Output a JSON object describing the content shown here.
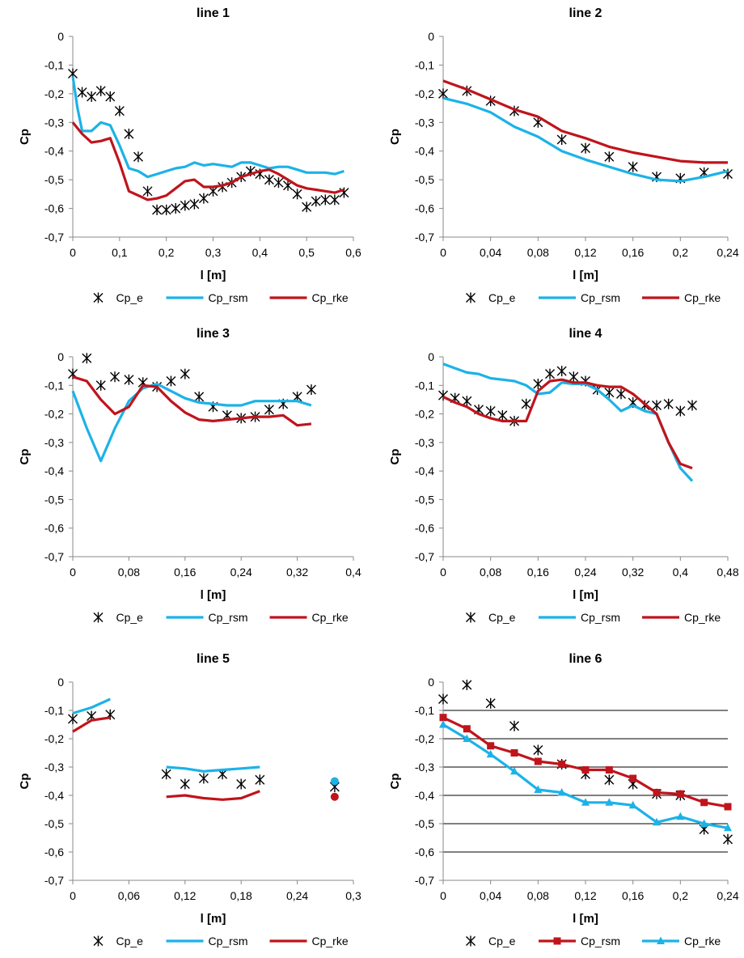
{
  "chart_data": [
    {
      "type": "line",
      "title": "line 1",
      "xlabel": "l [m]",
      "ylabel": "Cp",
      "xlim": [
        0,
        0.6
      ],
      "ylim": [
        -0.7,
        0
      ],
      "xticks": [
        "0",
        "0,1",
        "0,2",
        "0,3",
        "0,4",
        "0,5",
        "0,6"
      ],
      "yticks": [
        "0",
        "-0,1",
        "-0,2",
        "-0,3",
        "-0,4",
        "-0,5",
        "-0,6",
        "-0,7"
      ],
      "grid": false,
      "legend": "bottom",
      "series": [
        {
          "name": "Cp_e",
          "style": "marker",
          "marker": "star",
          "color": "#000000",
          "x": [
            0,
            0.02,
            0.04,
            0.06,
            0.08,
            0.1,
            0.12,
            0.14,
            0.16,
            0.18,
            0.2,
            0.22,
            0.24,
            0.26,
            0.28,
            0.3,
            0.32,
            0.34,
            0.36,
            0.38,
            0.4,
            0.42,
            0.44,
            0.46,
            0.48,
            0.5,
            0.52,
            0.54,
            0.56,
            0.58
          ],
          "y": [
            -0.13,
            -0.195,
            -0.21,
            -0.19,
            -0.21,
            -0.26,
            -0.34,
            -0.42,
            -0.54,
            -0.605,
            -0.605,
            -0.6,
            -0.59,
            -0.585,
            -0.565,
            -0.54,
            -0.525,
            -0.51,
            -0.49,
            -0.47,
            -0.48,
            -0.5,
            -0.51,
            -0.52,
            -0.55,
            -0.595,
            -0.575,
            -0.57,
            -0.57,
            -0.545
          ]
        },
        {
          "name": "Cp_rsm",
          "style": "line",
          "color": "#1cb2e8",
          "x": [
            0,
            0.01,
            0.02,
            0.04,
            0.06,
            0.08,
            0.1,
            0.12,
            0.14,
            0.16,
            0.18,
            0.2,
            0.22,
            0.24,
            0.26,
            0.28,
            0.3,
            0.32,
            0.34,
            0.36,
            0.38,
            0.4,
            0.42,
            0.44,
            0.46,
            0.48,
            0.5,
            0.52,
            0.54,
            0.56,
            0.58
          ],
          "y": [
            -0.14,
            -0.25,
            -0.33,
            -0.33,
            -0.3,
            -0.31,
            -0.38,
            -0.46,
            -0.47,
            -0.49,
            -0.48,
            -0.47,
            -0.46,
            -0.455,
            -0.44,
            -0.45,
            -0.445,
            -0.45,
            -0.455,
            -0.44,
            -0.44,
            -0.45,
            -0.46,
            -0.455,
            -0.455,
            -0.465,
            -0.475,
            -0.475,
            -0.475,
            -0.48,
            -0.47
          ]
        },
        {
          "name": "Cp_rke",
          "style": "line",
          "color": "#c0141c",
          "x": [
            0,
            0.02,
            0.04,
            0.06,
            0.08,
            0.1,
            0.12,
            0.14,
            0.16,
            0.18,
            0.2,
            0.22,
            0.24,
            0.26,
            0.28,
            0.3,
            0.32,
            0.34,
            0.36,
            0.38,
            0.4,
            0.42,
            0.44,
            0.46,
            0.48,
            0.5,
            0.52,
            0.54,
            0.56,
            0.58
          ],
          "y": [
            -0.3,
            -0.34,
            -0.37,
            -0.365,
            -0.355,
            -0.44,
            -0.54,
            -0.555,
            -0.57,
            -0.565,
            -0.555,
            -0.53,
            -0.505,
            -0.5,
            -0.525,
            -0.525,
            -0.52,
            -0.51,
            -0.49,
            -0.48,
            -0.47,
            -0.465,
            -0.48,
            -0.5,
            -0.52,
            -0.53,
            -0.535,
            -0.54,
            -0.545,
            -0.535
          ]
        }
      ]
    },
    {
      "type": "line",
      "title": "line 2",
      "xlabel": "l [m]",
      "ylabel": "Cp",
      "xlim": [
        0,
        0.24
      ],
      "ylim": [
        -0.7,
        0
      ],
      "xticks": [
        "0",
        "0,04",
        "0,08",
        "0,12",
        "0,16",
        "0,2",
        "0,24"
      ],
      "yticks": [
        "0",
        "-0,1",
        "-0,2",
        "-0,3",
        "-0,4",
        "-0,5",
        "-0,6",
        "-0,7"
      ],
      "grid": false,
      "legend": "bottom",
      "series": [
        {
          "name": "Cp_e",
          "style": "marker",
          "marker": "star",
          "color": "#000000",
          "x": [
            0,
            0.02,
            0.04,
            0.06,
            0.08,
            0.1,
            0.12,
            0.14,
            0.16,
            0.18,
            0.2,
            0.22,
            0.24
          ],
          "y": [
            -0.2,
            -0.19,
            -0.225,
            -0.26,
            -0.3,
            -0.36,
            -0.39,
            -0.42,
            -0.455,
            -0.49,
            -0.495,
            -0.475,
            -0.48
          ]
        },
        {
          "name": "Cp_rsm",
          "style": "line",
          "color": "#1cb2e8",
          "x": [
            0,
            0.02,
            0.04,
            0.06,
            0.08,
            0.1,
            0.12,
            0.14,
            0.16,
            0.18,
            0.2,
            0.22,
            0.24
          ],
          "y": [
            -0.215,
            -0.235,
            -0.265,
            -0.315,
            -0.35,
            -0.4,
            -0.43,
            -0.455,
            -0.48,
            -0.5,
            -0.505,
            -0.49,
            -0.47
          ]
        },
        {
          "name": "Cp_rke",
          "style": "line",
          "color": "#c0141c",
          "x": [
            0,
            0.02,
            0.04,
            0.06,
            0.08,
            0.1,
            0.12,
            0.14,
            0.16,
            0.18,
            0.2,
            0.22,
            0.24
          ],
          "y": [
            -0.155,
            -0.185,
            -0.22,
            -0.255,
            -0.28,
            -0.33,
            -0.355,
            -0.385,
            -0.405,
            -0.42,
            -0.435,
            -0.44,
            -0.44
          ]
        }
      ]
    },
    {
      "type": "line",
      "title": "line 3",
      "xlabel": "l [m]",
      "ylabel": "Cp",
      "xlim": [
        0,
        0.4
      ],
      "ylim": [
        -0.7,
        0
      ],
      "xticks": [
        "0",
        "0,08",
        "0,16",
        "0,24",
        "0,32",
        "0,4"
      ],
      "yticks": [
        "0",
        "-0,1",
        "-0,2",
        "-0,3",
        "-0,4",
        "-0,5",
        "-0,6",
        "-0,7"
      ],
      "grid": false,
      "legend": "bottom",
      "series": [
        {
          "name": "Cp_e",
          "style": "marker",
          "marker": "star",
          "color": "#000000",
          "x": [
            0,
            0.02,
            0.04,
            0.06,
            0.08,
            0.1,
            0.12,
            0.14,
            0.16,
            0.18,
            0.2,
            0.22,
            0.24,
            0.26,
            0.28,
            0.3,
            0.32,
            0.34
          ],
          "y": [
            -0.06,
            -0.005,
            -0.1,
            -0.07,
            -0.08,
            -0.09,
            -0.105,
            -0.085,
            -0.06,
            -0.14,
            -0.175,
            -0.205,
            -0.215,
            -0.21,
            -0.185,
            -0.165,
            -0.14,
            -0.115
          ]
        },
        {
          "name": "Cp_rsm",
          "style": "line",
          "color": "#1cb2e8",
          "x": [
            0,
            0.02,
            0.04,
            0.06,
            0.08,
            0.1,
            0.12,
            0.14,
            0.16,
            0.18,
            0.2,
            0.22,
            0.24,
            0.26,
            0.28,
            0.3,
            0.32,
            0.34
          ],
          "y": [
            -0.12,
            -0.25,
            -0.365,
            -0.25,
            -0.155,
            -0.11,
            -0.095,
            -0.12,
            -0.145,
            -0.16,
            -0.165,
            -0.17,
            -0.17,
            -0.155,
            -0.155,
            -0.155,
            -0.155,
            -0.17
          ]
        },
        {
          "name": "Cp_rke",
          "style": "line",
          "color": "#c0141c",
          "x": [
            0,
            0.02,
            0.04,
            0.06,
            0.08,
            0.1,
            0.12,
            0.14,
            0.16,
            0.18,
            0.2,
            0.22,
            0.24,
            0.26,
            0.28,
            0.3,
            0.32,
            0.34
          ],
          "y": [
            -0.07,
            -0.085,
            -0.15,
            -0.2,
            -0.175,
            -0.1,
            -0.105,
            -0.155,
            -0.195,
            -0.22,
            -0.225,
            -0.22,
            -0.215,
            -0.21,
            -0.21,
            -0.205,
            -0.24,
            -0.235
          ]
        }
      ]
    },
    {
      "type": "line",
      "title": "line 4",
      "xlabel": "l [m]",
      "ylabel": "Cp",
      "xlim": [
        0,
        0.48
      ],
      "ylim": [
        -0.7,
        0
      ],
      "xticks": [
        "0",
        "0,08",
        "0,16",
        "0,24",
        "0,32",
        "0,4",
        "0,48"
      ],
      "yticks": [
        "0",
        "-0,1",
        "-0,2",
        "-0,3",
        "-0,4",
        "-0,5",
        "-0,6",
        "-0,7"
      ],
      "grid": false,
      "legend": "bottom",
      "series": [
        {
          "name": "Cp_e",
          "style": "marker",
          "marker": "star",
          "color": "#000000",
          "x": [
            0,
            0.02,
            0.04,
            0.06,
            0.08,
            0.1,
            0.12,
            0.14,
            0.16,
            0.18,
            0.2,
            0.22,
            0.24,
            0.26,
            0.28,
            0.3,
            0.32,
            0.34,
            0.36,
            0.38,
            0.4,
            0.42
          ],
          "y": [
            -0.135,
            -0.145,
            -0.155,
            -0.185,
            -0.19,
            -0.205,
            -0.225,
            -0.165,
            -0.095,
            -0.06,
            -0.05,
            -0.07,
            -0.085,
            -0.115,
            -0.125,
            -0.13,
            -0.16,
            -0.17,
            -0.17,
            -0.165,
            -0.19,
            -0.17
          ]
        },
        {
          "name": "Cp_rsm",
          "style": "line",
          "color": "#1cb2e8",
          "x": [
            0,
            0.02,
            0.04,
            0.06,
            0.08,
            0.1,
            0.12,
            0.14,
            0.16,
            0.18,
            0.2,
            0.22,
            0.24,
            0.26,
            0.28,
            0.3,
            0.32,
            0.34,
            0.36,
            0.38,
            0.4,
            0.42
          ],
          "y": [
            -0.025,
            -0.04,
            -0.055,
            -0.06,
            -0.075,
            -0.08,
            -0.085,
            -0.1,
            -0.13,
            -0.125,
            -0.09,
            -0.095,
            -0.095,
            -0.115,
            -0.15,
            -0.19,
            -0.17,
            -0.19,
            -0.2,
            -0.3,
            -0.39,
            -0.435
          ]
        },
        {
          "name": "Cp_rke",
          "style": "line",
          "color": "#c0141c",
          "x": [
            0,
            0.02,
            0.04,
            0.06,
            0.08,
            0.1,
            0.12,
            0.14,
            0.16,
            0.18,
            0.2,
            0.22,
            0.24,
            0.26,
            0.28,
            0.3,
            0.32,
            0.34,
            0.36,
            0.38,
            0.4,
            0.42
          ],
          "y": [
            -0.14,
            -0.16,
            -0.175,
            -0.2,
            -0.215,
            -0.225,
            -0.225,
            -0.225,
            -0.12,
            -0.085,
            -0.08,
            -0.09,
            -0.09,
            -0.1,
            -0.105,
            -0.105,
            -0.13,
            -0.165,
            -0.2,
            -0.3,
            -0.375,
            -0.39
          ]
        }
      ]
    },
    {
      "type": "line",
      "title": "line 5",
      "xlabel": "l [m]",
      "ylabel": "Cp",
      "xlim": [
        0,
        0.3
      ],
      "ylim": [
        -0.7,
        0
      ],
      "xticks": [
        "0",
        "0,06",
        "0,12",
        "0,18",
        "0,24",
        "0,3"
      ],
      "yticks": [
        "0",
        "-0,1",
        "-0,2",
        "-0,3",
        "-0,4",
        "-0,5",
        "-0,6",
        "-0,7"
      ],
      "grid": false,
      "legend": "bottom",
      "series": [
        {
          "name": "Cp_e",
          "style": "marker",
          "marker": "star",
          "color": "#000000",
          "x": [
            0,
            0.02,
            0.04,
            0.1,
            0.12,
            0.14,
            0.16,
            0.18,
            0.2,
            0.28
          ],
          "y": [
            -0.13,
            -0.12,
            -0.115,
            -0.325,
            -0.36,
            -0.34,
            -0.325,
            -0.36,
            -0.345,
            -0.37
          ]
        },
        {
          "name": "Cp_rsm",
          "style": "line",
          "color": "#1cb2e8",
          "segments": [
            {
              "x": [
                0,
                0.02,
                0.04
              ],
              "y": [
                -0.11,
                -0.09,
                -0.06
              ]
            },
            {
              "x": [
                0.1,
                0.12,
                0.14,
                0.16,
                0.18,
                0.2
              ],
              "y": [
                -0.3,
                -0.305,
                -0.315,
                -0.31,
                -0.305,
                -0.3
              ]
            },
            {
              "x": [
                0.28
              ],
              "y": [
                -0.35
              ]
            }
          ]
        },
        {
          "name": "Cp_rke",
          "style": "line",
          "color": "#c0141c",
          "segments": [
            {
              "x": [
                0,
                0.02,
                0.04
              ],
              "y": [
                -0.175,
                -0.135,
                -0.125
              ]
            },
            {
              "x": [
                0.1,
                0.12,
                0.14,
                0.16,
                0.18,
                0.2
              ],
              "y": [
                -0.405,
                -0.4,
                -0.41,
                -0.415,
                -0.41,
                -0.385
              ]
            },
            {
              "x": [
                0.28
              ],
              "y": [
                -0.405
              ]
            }
          ]
        }
      ]
    },
    {
      "type": "line",
      "title": "line 6",
      "xlabel": "l [m]",
      "ylabel": "Cp",
      "xlim": [
        0,
        0.24
      ],
      "ylim": [
        -0.7,
        0
      ],
      "xticks": [
        "0",
        "0,04",
        "0,08",
        "0,12",
        "0,16",
        "0,2",
        "0,24"
      ],
      "yticks": [
        "0",
        "-0,1",
        "-0,2",
        "-0,3",
        "-0,4",
        "-0,5",
        "-0,6",
        "-0,7"
      ],
      "grid": true,
      "legend": "bottom",
      "series": [
        {
          "name": "Cp_e",
          "style": "marker",
          "marker": "star",
          "color": "#000000",
          "x": [
            0,
            0.02,
            0.04,
            0.06,
            0.08,
            0.1,
            0.12,
            0.14,
            0.16,
            0.18,
            0.2,
            0.22,
            0.24
          ],
          "y": [
            -0.06,
            -0.01,
            -0.075,
            -0.155,
            -0.24,
            -0.29,
            -0.325,
            -0.345,
            -0.36,
            -0.395,
            -0.4,
            -0.52,
            -0.555
          ]
        },
        {
          "name": "Cp_rsm",
          "style": "line-marker",
          "marker": "square",
          "color": "#c0141c",
          "x": [
            0,
            0.02,
            0.04,
            0.06,
            0.08,
            0.1,
            0.12,
            0.14,
            0.16,
            0.18,
            0.2,
            0.22,
            0.24
          ],
          "y": [
            -0.125,
            -0.165,
            -0.225,
            -0.25,
            -0.28,
            -0.29,
            -0.31,
            -0.31,
            -0.34,
            -0.39,
            -0.395,
            -0.425,
            -0.44
          ]
        },
        {
          "name": "Cp_rke",
          "style": "line-marker",
          "marker": "triangle",
          "color": "#1cb2e8",
          "x": [
            0,
            0.02,
            0.04,
            0.06,
            0.08,
            0.1,
            0.12,
            0.14,
            0.16,
            0.18,
            0.2,
            0.22,
            0.24
          ],
          "y": [
            -0.15,
            -0.2,
            -0.255,
            -0.315,
            -0.38,
            -0.39,
            -0.425,
            -0.425,
            -0.435,
            -0.495,
            -0.475,
            -0.5,
            -0.515
          ]
        }
      ]
    }
  ]
}
